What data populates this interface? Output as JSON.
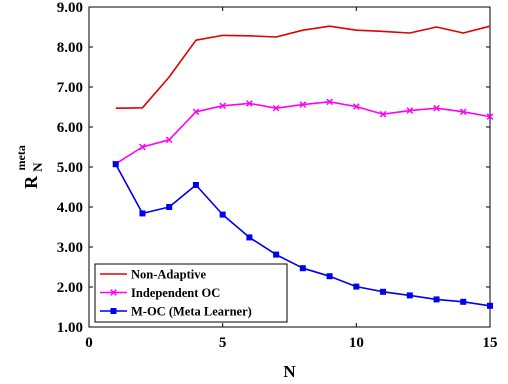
{
  "chart_data": {
    "type": "line",
    "xlabel": "N",
    "ylabel": {
      "base": "R",
      "subscript": "N",
      "superscript": "meta"
    },
    "xlim": [
      0,
      15
    ],
    "ylim": [
      1.0,
      9.0
    ],
    "xticks": [
      0,
      5,
      10,
      15
    ],
    "yticks": [
      1.0,
      2.0,
      3.0,
      4.0,
      5.0,
      6.0,
      7.0,
      8.0,
      9.0
    ],
    "xtick_labels": [
      "0",
      "5",
      "10",
      "15"
    ],
    "ytick_labels": [
      "1.00",
      "2.00",
      "3.00",
      "4.00",
      "5.00",
      "6.00",
      "7.00",
      "8.00",
      "9.00"
    ],
    "grid": false,
    "legend_position": "bottom-left",
    "x": [
      1,
      2,
      3,
      4,
      5,
      6,
      7,
      8,
      9,
      10,
      11,
      12,
      13,
      14,
      15
    ],
    "series": [
      {
        "name": "Non-Adaptive",
        "color": "#e00000",
        "marker": "none",
        "values": [
          6.47,
          6.48,
          7.25,
          8.17,
          8.29,
          8.28,
          8.25,
          8.42,
          8.52,
          8.42,
          8.39,
          8.35,
          8.5,
          8.35,
          8.52
        ]
      },
      {
        "name": "Independent OC",
        "color": "#ff00ff",
        "marker": "x",
        "values": [
          5.08,
          5.5,
          5.68,
          6.38,
          6.53,
          6.59,
          6.47,
          6.56,
          6.63,
          6.51,
          6.32,
          6.41,
          6.47,
          6.38,
          6.26
        ]
      },
      {
        "name": "M-OC (Meta Learner)",
        "color": "#0000ee",
        "marker": "square",
        "values": [
          5.07,
          3.84,
          4.0,
          4.55,
          3.81,
          3.24,
          2.81,
          2.47,
          2.27,
          2.01,
          1.88,
          1.79,
          1.69,
          1.63,
          1.53
        ]
      }
    ]
  }
}
